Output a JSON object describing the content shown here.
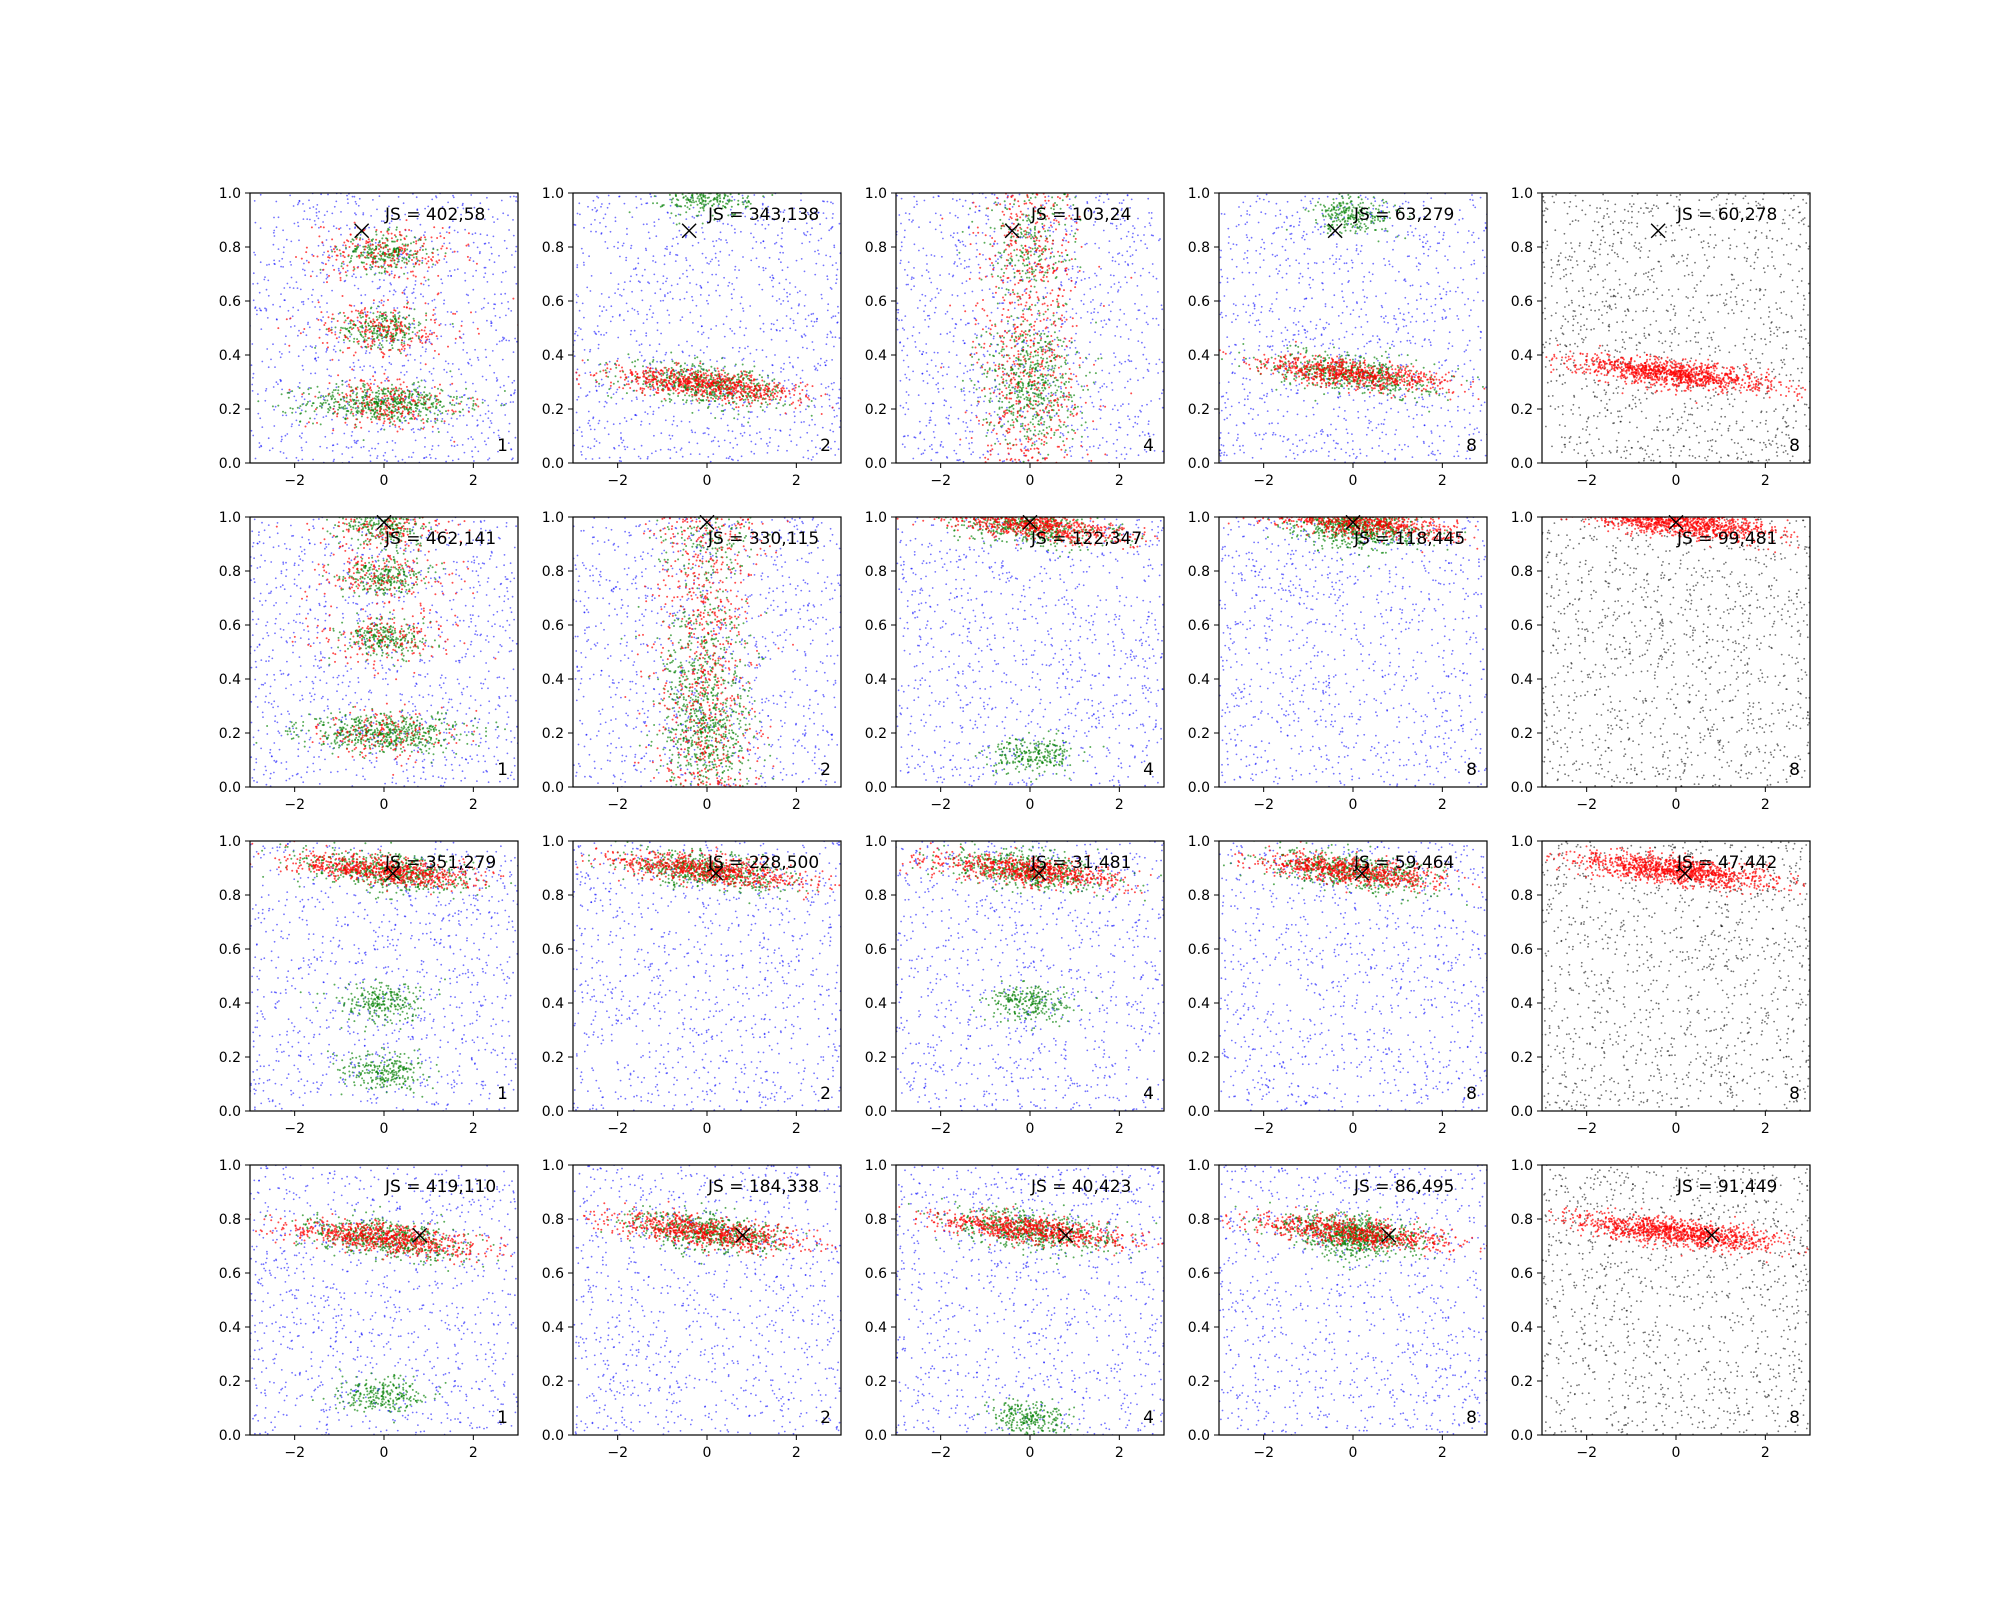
{
  "chart_data": {
    "type": "scatter",
    "layout": {
      "rows": 4,
      "cols": 5
    },
    "xlim": [
      -3,
      3
    ],
    "ylim": [
      0,
      1
    ],
    "x_ticks": [
      -2,
      0,
      2
    ],
    "y_ticks": [
      0.0,
      0.2,
      0.4,
      0.6,
      0.8,
      1.0
    ],
    "x_tick_labels": [
      "−2",
      "0",
      "2"
    ],
    "y_tick_labels": [
      "0.0",
      "0.2",
      "0.4",
      "0.6",
      "0.8",
      "1.0"
    ],
    "colors": {
      "blue": "#0000ff",
      "green": "#008000",
      "red": "#ff0000",
      "black": "#000000"
    },
    "panels": [
      {
        "row": 0,
        "col": 0,
        "js_label": "JS = 402,58",
        "count_label": "1",
        "marker": [
          -0.5,
          0.86
        ],
        "structure": "blobs",
        "centers": [
          0.22,
          0.5,
          0.78
        ],
        "background": "blue",
        "has_green": true
      },
      {
        "row": 0,
        "col": 1,
        "js_label": "JS = 343,138",
        "count_label": "2",
        "marker": [
          -0.4,
          0.86
        ],
        "structure": "bands",
        "centers": [
          0.29,
          0.98
        ],
        "background": "blue",
        "has_green": true
      },
      {
        "row": 0,
        "col": 2,
        "js_label": "JS = 103,24",
        "count_label": "4",
        "marker": [
          -0.4,
          0.86
        ],
        "structure": "column",
        "centers": [
          0.3,
          0.8
        ],
        "background": "blue",
        "has_green": true
      },
      {
        "row": 0,
        "col": 3,
        "js_label": "JS = 63,279",
        "count_label": "8",
        "marker": [
          -0.4,
          0.86
        ],
        "structure": "bands",
        "centers": [
          0.33,
          0.92
        ],
        "background": "blue",
        "has_green": true
      },
      {
        "row": 0,
        "col": 4,
        "js_label": "JS = 60,278",
        "count_label": "8",
        "marker": [
          -0.4,
          0.86
        ],
        "structure": "bands",
        "centers": [
          0.33
        ],
        "background": "black",
        "has_green": false
      },
      {
        "row": 1,
        "col": 0,
        "js_label": "JS = 462,141",
        "count_label": "1",
        "marker": [
          0.0,
          0.98
        ],
        "structure": "blobs",
        "centers": [
          0.2,
          0.55,
          0.78,
          0.97
        ],
        "background": "blue",
        "has_green": true
      },
      {
        "row": 1,
        "col": 1,
        "js_label": "JS = 330,115",
        "count_label": "2",
        "marker": [
          0.0,
          0.98
        ],
        "structure": "column",
        "centers": [
          0.2,
          0.5,
          0.97
        ],
        "background": "blue",
        "has_green": true
      },
      {
        "row": 1,
        "col": 2,
        "js_label": "JS = 122,347",
        "count_label": "4",
        "marker": [
          0.0,
          0.98
        ],
        "structure": "bands",
        "centers": [
          0.97,
          0.12
        ],
        "background": "blue",
        "has_green": true
      },
      {
        "row": 1,
        "col": 3,
        "js_label": "JS = 118,445",
        "count_label": "8",
        "marker": [
          0.0,
          0.98
        ],
        "structure": "bands",
        "centers": [
          0.98,
          0.94
        ],
        "background": "blue",
        "has_green": true
      },
      {
        "row": 1,
        "col": 4,
        "js_label": "JS = 99,481",
        "count_label": "8",
        "marker": [
          0.0,
          0.98
        ],
        "structure": "bands",
        "centers": [
          0.98
        ],
        "background": "black",
        "has_green": false
      },
      {
        "row": 2,
        "col": 0,
        "js_label": "JS = 351,279",
        "count_label": "1",
        "marker": [
          0.2,
          0.88
        ],
        "structure": "bands",
        "centers": [
          0.89,
          0.4,
          0.15
        ],
        "background": "blue",
        "has_green": true
      },
      {
        "row": 2,
        "col": 1,
        "js_label": "JS = 228,500",
        "count_label": "2",
        "marker": [
          0.2,
          0.88
        ],
        "structure": "bands",
        "centers": [
          0.89
        ],
        "background": "blue",
        "has_green": true
      },
      {
        "row": 2,
        "col": 2,
        "js_label": "JS = 31,481",
        "count_label": "4",
        "marker": [
          0.2,
          0.88
        ],
        "structure": "bands",
        "centers": [
          0.89,
          0.4
        ],
        "background": "blue",
        "has_green": true
      },
      {
        "row": 2,
        "col": 3,
        "js_label": "JS = 59,464",
        "count_label": "8",
        "marker": [
          0.2,
          0.88
        ],
        "structure": "bands",
        "centers": [
          0.89
        ],
        "background": "blue",
        "has_green": true
      },
      {
        "row": 2,
        "col": 4,
        "js_label": "JS = 47,442",
        "count_label": "8",
        "marker": [
          0.2,
          0.88
        ],
        "structure": "bands",
        "centers": [
          0.89
        ],
        "background": "black",
        "has_green": false
      },
      {
        "row": 3,
        "col": 0,
        "js_label": "JS = 419,110",
        "count_label": "1",
        "marker": [
          0.8,
          0.74
        ],
        "structure": "bands",
        "centers": [
          0.73,
          0.15
        ],
        "background": "blue",
        "has_green": true
      },
      {
        "row": 3,
        "col": 1,
        "js_label": "JS = 184,338",
        "count_label": "2",
        "marker": [
          0.8,
          0.74
        ],
        "structure": "bands",
        "centers": [
          0.75
        ],
        "background": "blue",
        "has_green": true
      },
      {
        "row": 3,
        "col": 2,
        "js_label": "JS = 40,423",
        "count_label": "4",
        "marker": [
          0.8,
          0.74
        ],
        "structure": "bands",
        "centers": [
          0.76,
          0.06
        ],
        "background": "blue",
        "has_green": true
      },
      {
        "row": 3,
        "col": 3,
        "js_label": "JS = 86,495",
        "count_label": "8",
        "marker": [
          0.8,
          0.74
        ],
        "structure": "bands",
        "centers": [
          0.75,
          0.72
        ],
        "background": "blue",
        "has_green": true
      },
      {
        "row": 3,
        "col": 4,
        "js_label": "JS = 91,449",
        "count_label": "8",
        "marker": [
          0.8,
          0.74
        ],
        "structure": "bands",
        "centers": [
          0.75
        ],
        "background": "black",
        "has_green": false
      }
    ]
  }
}
